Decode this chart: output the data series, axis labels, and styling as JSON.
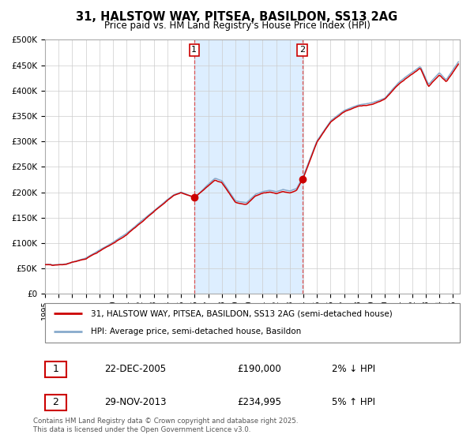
{
  "title": "31, HALSTOW WAY, PITSEA, BASILDON, SS13 2AG",
  "subtitle": "Price paid vs. HM Land Registry's House Price Index (HPI)",
  "ylim": [
    0,
    500000
  ],
  "yticks": [
    0,
    50000,
    100000,
    150000,
    200000,
    250000,
    300000,
    350000,
    400000,
    450000,
    500000
  ],
  "sale1_date": 2005.97,
  "sale1_price": 190000,
  "sale1_label": "1",
  "sale2_date": 2013.91,
  "sale2_price": 234995,
  "sale2_label": "2",
  "legend_line1": "31, HALSTOW WAY, PITSEA, BASILDON, SS13 2AG (semi-detached house)",
  "legend_line2": "HPI: Average price, semi-detached house, Basildon",
  "table_row1_num": "1",
  "table_row1_date": "22-DEC-2005",
  "table_row1_price": "£190,000",
  "table_row1_hpi": "2% ↓ HPI",
  "table_row2_num": "2",
  "table_row2_date": "29-NOV-2013",
  "table_row2_price": "£234,995",
  "table_row2_hpi": "5% ↑ HPI",
  "footnote": "Contains HM Land Registry data © Crown copyright and database right 2025.\nThis data is licensed under the Open Government Licence v3.0.",
  "line_color_red": "#cc0000",
  "line_color_blue": "#88aacc",
  "shade_color": "#ddeeff",
  "bg_color": "#ffffff",
  "grid_color": "#cccccc",
  "sale_marker_color": "#cc0000",
  "dashed_color": "#dd4444"
}
